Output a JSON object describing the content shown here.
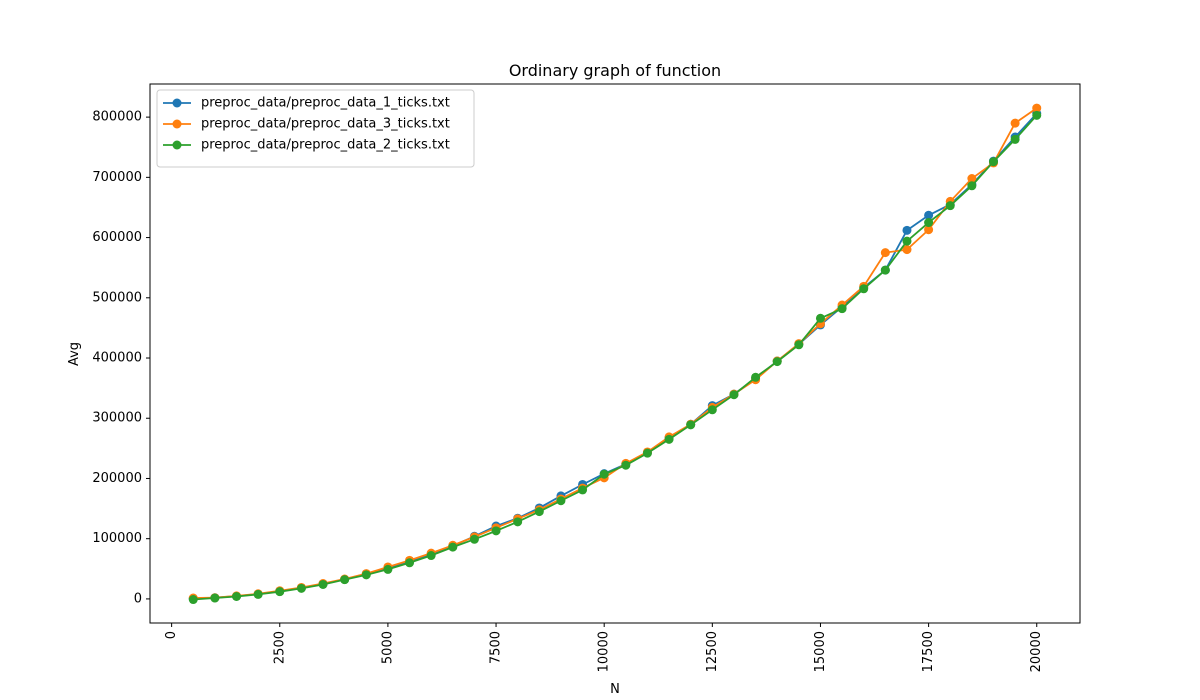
{
  "chart_data": {
    "type": "line",
    "title": "Ordinary graph of function",
    "xlabel": "N",
    "ylabel": "Avg",
    "xlim": [
      -500,
      21000
    ],
    "ylim": [
      -40000,
      855000
    ],
    "x_ticks": [
      0,
      2500,
      5000,
      7500,
      10000,
      12500,
      15000,
      17500,
      20000
    ],
    "y_ticks": [
      0,
      100000,
      200000,
      300000,
      400000,
      500000,
      600000,
      700000,
      800000
    ],
    "grid": false,
    "legend_position": "top-left",
    "x": [
      500,
      1000,
      1500,
      2000,
      2500,
      3000,
      3500,
      4000,
      4500,
      5000,
      5500,
      6000,
      6500,
      7000,
      7500,
      8000,
      8500,
      9000,
      9500,
      10000,
      10500,
      11000,
      11500,
      12000,
      12500,
      13000,
      13500,
      14000,
      14500,
      15000,
      15500,
      16000,
      16500,
      17000,
      17500,
      18000,
      18500,
      19000,
      19500,
      20000
    ],
    "series": [
      {
        "name": "preproc_data/preproc_data_1_ticks.txt",
        "color": "#1f77b4",
        "values": [
          500,
          2000,
          4500,
          8000,
          13000,
          18500,
          25000,
          32500,
          41500,
          51500,
          62000,
          74000,
          88000,
          104000,
          121000,
          134000,
          151000,
          171000,
          190000,
          208000,
          224000,
          243000,
          267000,
          290000,
          321000,
          340000,
          366000,
          395000,
          423000,
          455000,
          485000,
          517000,
          546000,
          612000,
          637000,
          655000,
          688000,
          727000,
          767000,
          806000
        ]
      },
      {
        "name": "preproc_data/preproc_data_3_ticks.txt",
        "color": "#ff7f0e",
        "values": [
          1500,
          2000,
          5000,
          8500,
          13500,
          19000,
          25500,
          33000,
          42000,
          53000,
          64000,
          76000,
          89000,
          103000,
          118000,
          133000,
          148000,
          166000,
          184000,
          201000,
          225000,
          244000,
          269000,
          290000,
          318000,
          340000,
          364000,
          395000,
          424000,
          457000,
          488000,
          519000,
          575000,
          580000,
          613000,
          660000,
          698000,
          724000,
          790000,
          815000
        ]
      },
      {
        "name": "preproc_data/preproc_data_2_ticks.txt",
        "color": "#2ca02c",
        "values": [
          -1000,
          1500,
          4000,
          7500,
          12000,
          17500,
          24000,
          32000,
          40000,
          49000,
          60000,
          72000,
          86000,
          99000,
          113000,
          128000,
          145000,
          163000,
          181000,
          207000,
          222000,
          242000,
          265000,
          289000,
          314000,
          339000,
          368000,
          394000,
          422000,
          466000,
          482000,
          515000,
          546000,
          594000,
          625000,
          653000,
          686000,
          726000,
          763000,
          803000
        ]
      }
    ]
  }
}
